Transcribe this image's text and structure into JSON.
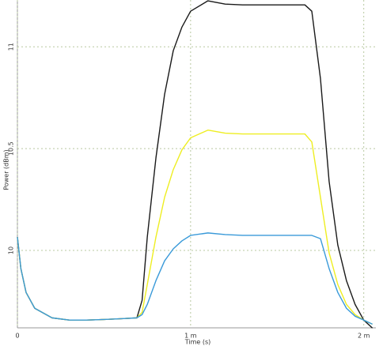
{
  "chart_data": {
    "type": "line",
    "x_label": "Time (s)",
    "y_label": "Power (dBm)",
    "x": [
      0,
      2e-05,
      5e-05,
      0.0001,
      0.0002,
      0.0003,
      0.0004,
      0.0005,
      0.0006,
      0.00069,
      0.00072,
      0.00075,
      0.0008,
      0.00085,
      0.0009,
      0.00095,
      0.001,
      0.0011,
      0.0012,
      0.0013,
      0.0014,
      0.0015,
      0.0016,
      0.00166,
      0.0017,
      0.00175,
      0.0018,
      0.00185,
      0.0019,
      0.00195,
      0.002,
      0.00205
    ],
    "series": [
      {
        "color": "#1a1a1a",
        "values": [
          10.066,
          9.911,
          9.794,
          9.716,
          9.669,
          9.658,
          9.658,
          9.661,
          9.665,
          9.669,
          9.755,
          10.066,
          10.455,
          10.767,
          10.981,
          11.097,
          11.175,
          11.226,
          11.21,
          11.206,
          11.206,
          11.206,
          11.206,
          11.206,
          11.175,
          10.844,
          10.339,
          10.027,
          9.852,
          9.735,
          9.658,
          9.619
        ]
      },
      {
        "color": "#eeee22",
        "values": [
          10.066,
          9.911,
          9.794,
          9.716,
          9.669,
          9.658,
          9.658,
          9.661,
          9.665,
          9.669,
          9.696,
          9.833,
          10.066,
          10.261,
          10.397,
          10.494,
          10.553,
          10.591,
          10.576,
          10.572,
          10.572,
          10.572,
          10.572,
          10.572,
          10.533,
          10.261,
          9.988,
          9.833,
          9.735,
          9.685,
          9.658,
          9.638
        ]
      },
      {
        "color": "#3a9ad9",
        "values": [
          10.066,
          9.911,
          9.794,
          9.716,
          9.669,
          9.658,
          9.658,
          9.661,
          9.665,
          9.669,
          9.685,
          9.735,
          9.852,
          9.949,
          10.008,
          10.047,
          10.074,
          10.086,
          10.078,
          10.074,
          10.074,
          10.074,
          10.074,
          10.074,
          10.074,
          10.058,
          9.911,
          9.794,
          9.716,
          9.677,
          9.658,
          9.638
        ]
      }
    ],
    "xlim": [
      0,
      0.00207
    ],
    "xticks": [
      0,
      {
        "value": 0.001,
        "label": "1 m"
      },
      {
        "value": 0.002,
        "label": "2 m"
      }
    ],
    "ylim": [
      9.62,
      11.23
    ],
    "yticks": [
      10,
      10.5,
      11
    ],
    "grid": true
  }
}
